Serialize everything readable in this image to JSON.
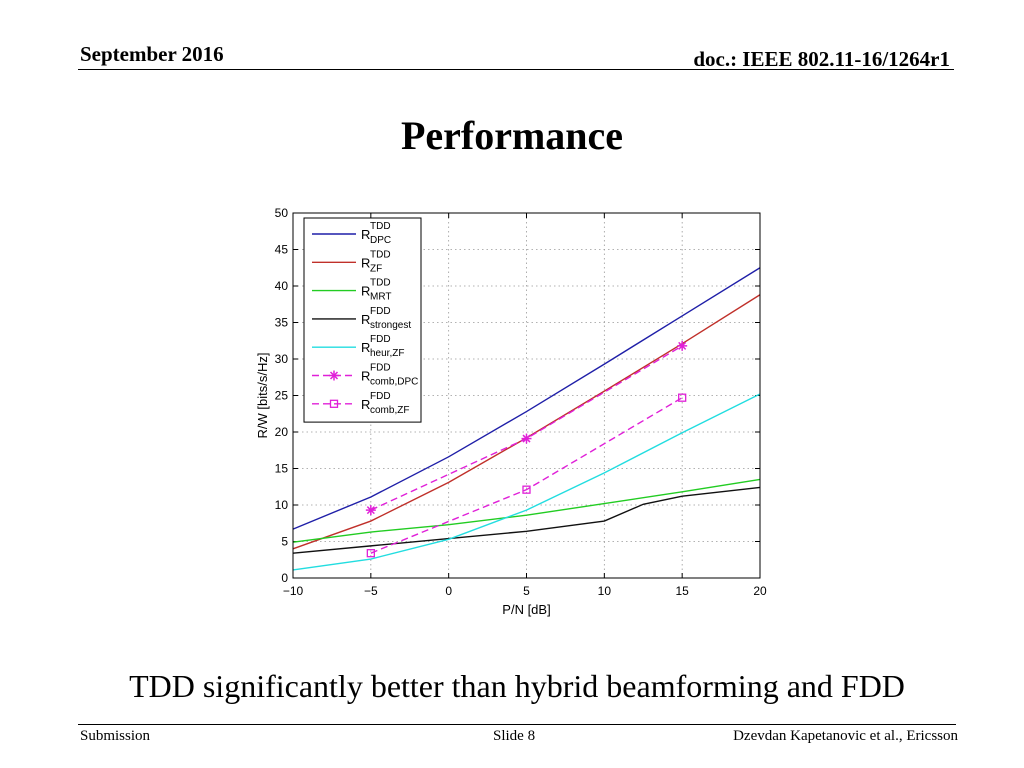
{
  "header": {
    "date": "September 2016",
    "doc": "doc.: IEEE 802.11-16/1264r1"
  },
  "slide_title": "Performance",
  "caption": "TDD significantly better than hybrid beamforming and FDD",
  "footer": {
    "left": "Submission",
    "center": "Slide 8",
    "right": "Dzevdan Kapetanovic et al., Ericsson"
  },
  "chart_data": {
    "type": "line",
    "title": "",
    "xlabel": "P/N [dB]",
    "ylabel": "R/W [bits/s/Hz]",
    "xlim": [
      -10,
      20
    ],
    "ylim": [
      0,
      50
    ],
    "xticks": [
      -10,
      -5,
      0,
      5,
      10,
      15,
      20
    ],
    "yticks": [
      0,
      5,
      10,
      15,
      20,
      25,
      30,
      35,
      40,
      45,
      50
    ],
    "xtick_labels": [
      "−10",
      "−5",
      "0",
      "5",
      "10",
      "15",
      "20"
    ],
    "ytick_labels": [
      "0",
      "5",
      "10",
      "15",
      "20",
      "25",
      "30",
      "35",
      "40",
      "45",
      "50"
    ],
    "grid": true,
    "legend_position": "top-left",
    "series": [
      {
        "name": "R",
        "sup": "TDD",
        "sub": "DPC",
        "color": "#1f1fa8",
        "style": "solid",
        "marker": "none",
        "x": [
          -10,
          -5,
          0,
          5,
          10,
          15,
          20
        ],
        "y": [
          6.7,
          11.1,
          16.6,
          22.8,
          29.3,
          35.9,
          42.5
        ]
      },
      {
        "name": "R",
        "sup": "TDD",
        "sub": "ZF",
        "color": "#c0302a",
        "style": "solid",
        "marker": "none",
        "x": [
          -10,
          -5,
          0,
          5,
          10,
          15,
          20
        ],
        "y": [
          4.0,
          7.8,
          13.1,
          19.2,
          25.6,
          32.1,
          38.8
        ]
      },
      {
        "name": "R",
        "sup": "TDD",
        "sub": "MRT",
        "color": "#22cc22",
        "style": "solid",
        "marker": "none",
        "x": [
          -10,
          -5,
          0,
          5,
          10,
          15,
          20
        ],
        "y": [
          4.9,
          6.3,
          7.3,
          8.6,
          10.2,
          11.8,
          13.5
        ]
      },
      {
        "name": "R",
        "sup": "FDD",
        "sub": "strongest",
        "color": "#111111",
        "style": "solid",
        "marker": "none",
        "x": [
          -10,
          -5,
          0,
          5,
          10,
          12.5,
          15,
          20
        ],
        "y": [
          3.4,
          4.4,
          5.4,
          6.4,
          7.8,
          10.1,
          11.2,
          12.4
        ]
      },
      {
        "name": "R",
        "sup": "FDD",
        "sub": "heur,ZF",
        "color": "#22dde0",
        "style": "solid",
        "marker": "none",
        "x": [
          -10,
          -5,
          0,
          5,
          10,
          15,
          20
        ],
        "y": [
          1.1,
          2.6,
          5.3,
          9.3,
          14.4,
          19.9,
          25.2
        ]
      },
      {
        "name": "R",
        "sup": "FDD",
        "sub": "comb,DPC",
        "color": "#e020d8",
        "style": "dashed",
        "marker": "star",
        "x": [
          -5,
          5,
          15
        ],
        "y": [
          9.3,
          19.1,
          31.8
        ]
      },
      {
        "name": "R",
        "sup": "FDD",
        "sub": "comb,ZF",
        "color": "#e020d8",
        "style": "dashed",
        "marker": "square",
        "x": [
          -5,
          5,
          15
        ],
        "y": [
          3.4,
          12.1,
          24.7
        ]
      }
    ]
  }
}
